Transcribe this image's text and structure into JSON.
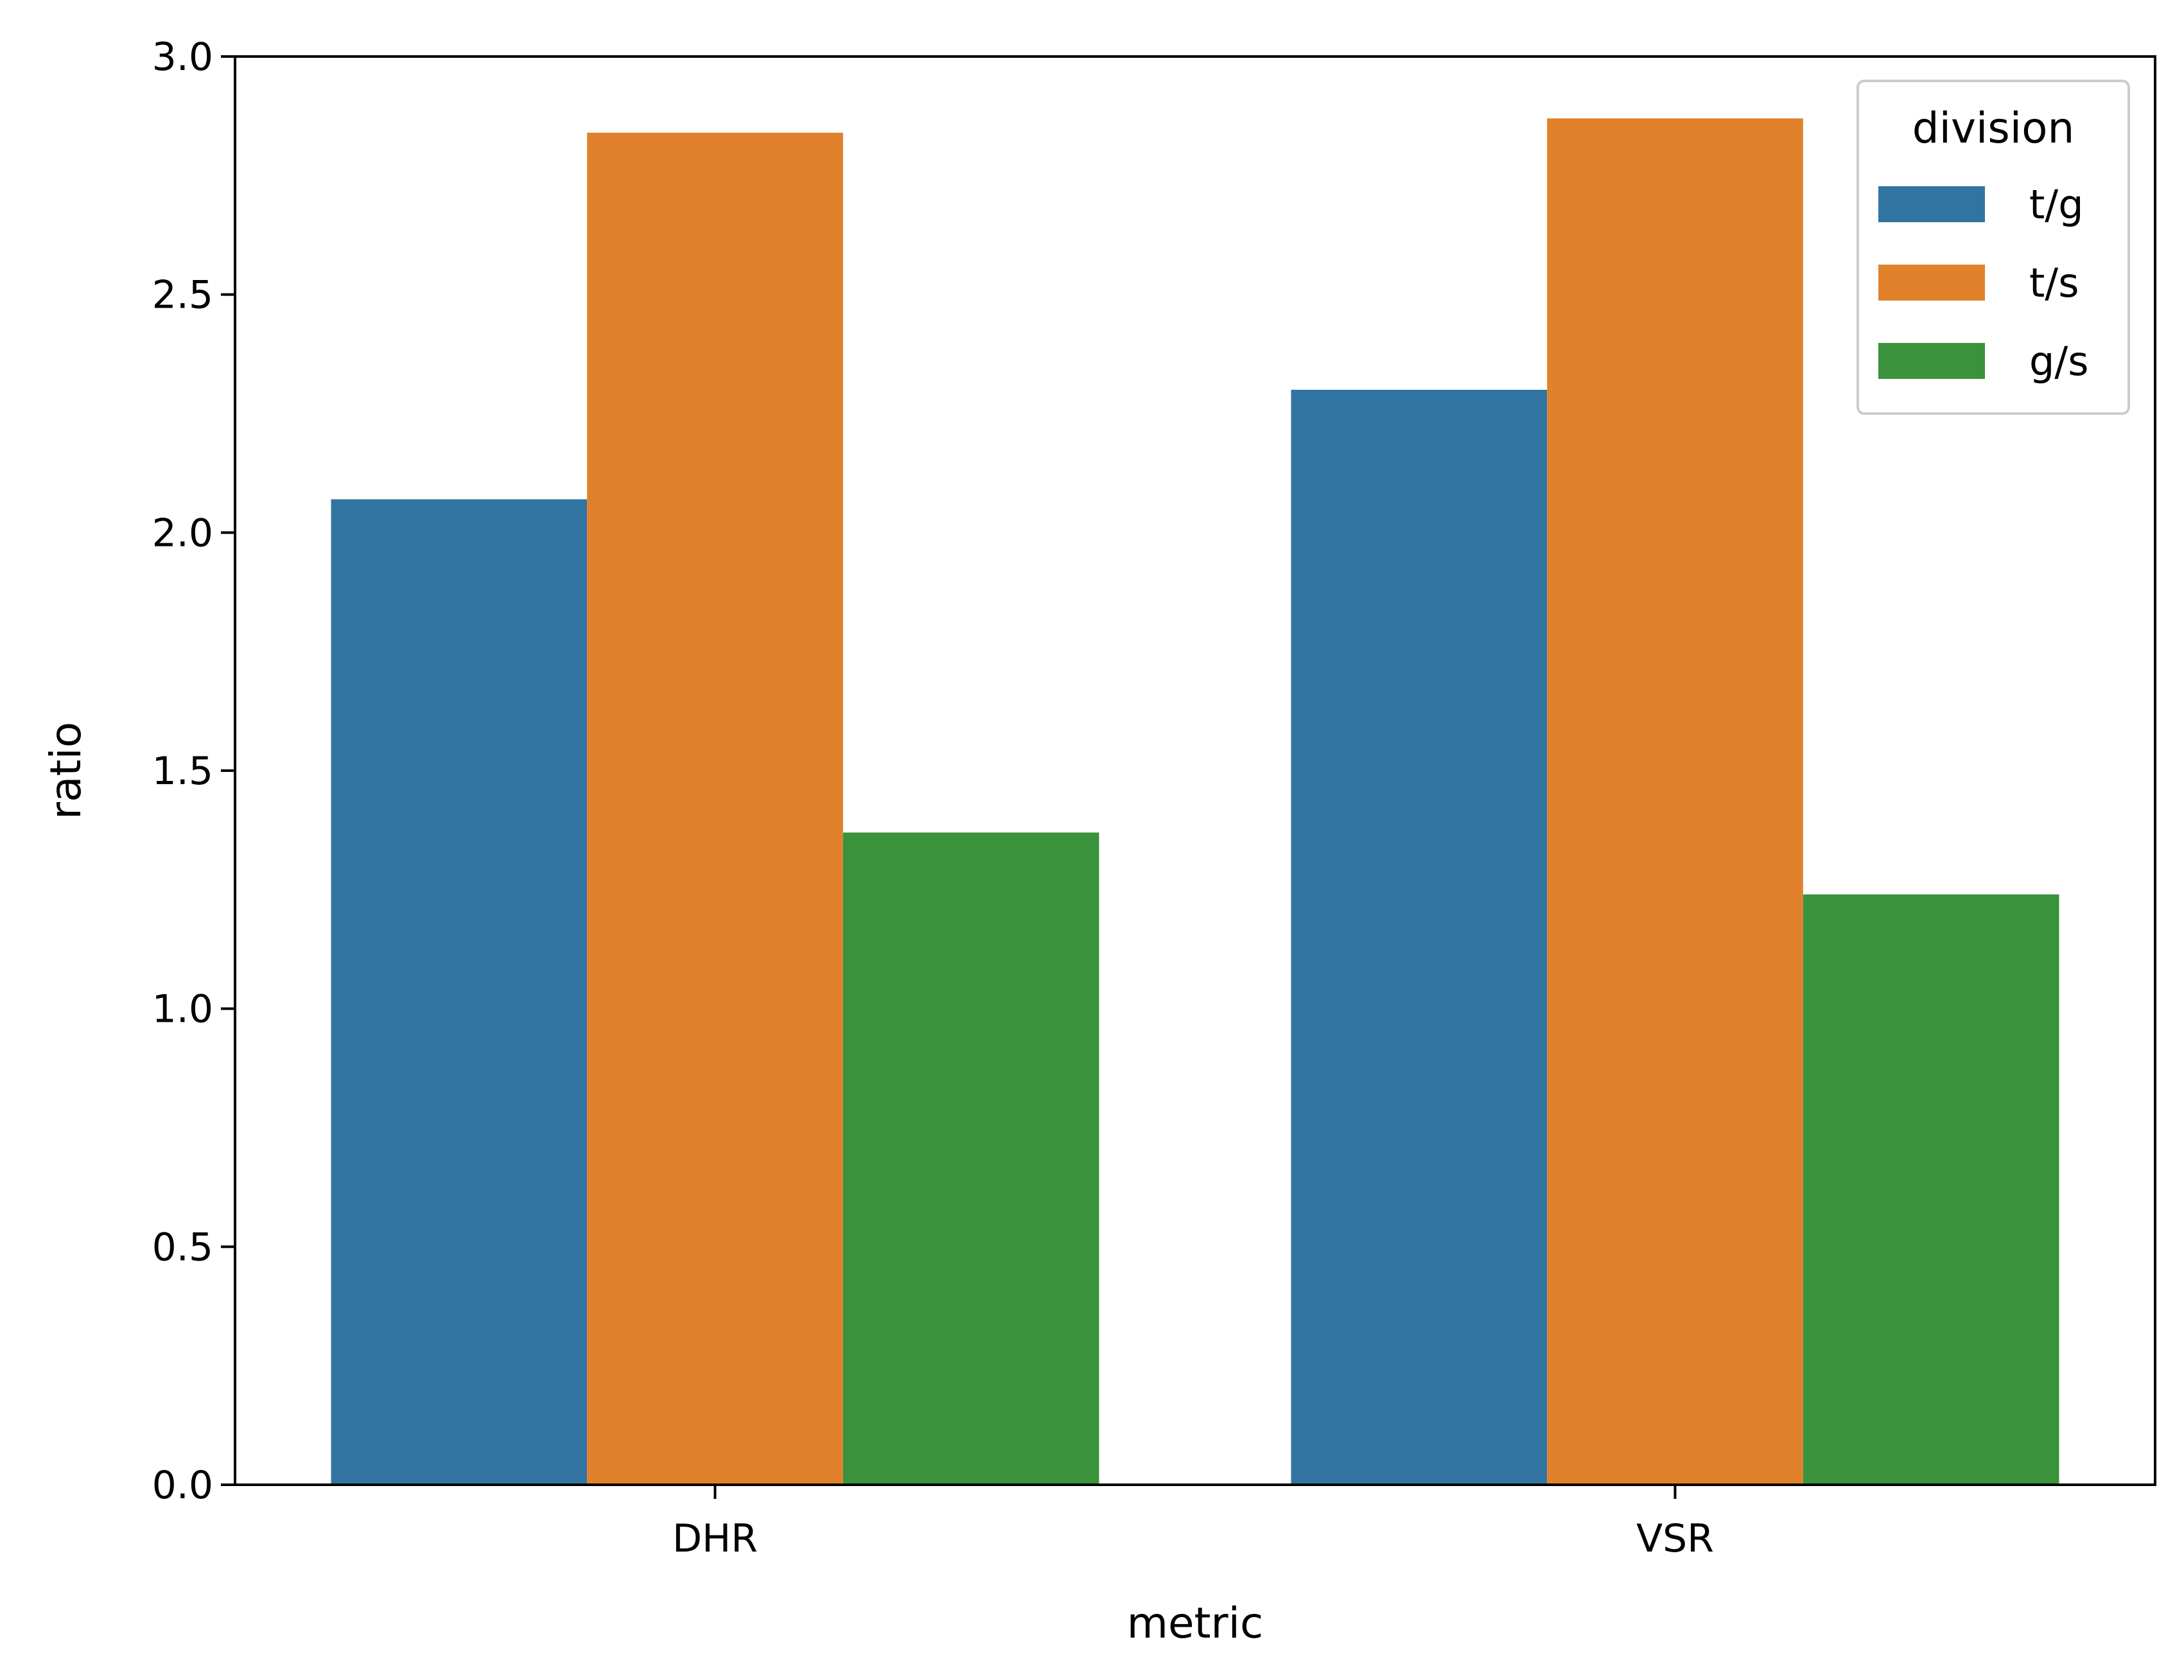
{
  "chart_data": {
    "type": "bar",
    "title": "",
    "xlabel": "metric",
    "ylabel": "ratio",
    "categories": [
      "DHR",
      "VSR"
    ],
    "ylim": [
      0,
      3.0
    ],
    "yticks": [
      "0.0",
      "0.5",
      "1.0",
      "1.5",
      "2.0",
      "2.5",
      "3.0"
    ],
    "grid": false,
    "legend": {
      "title": "division",
      "placement": "top-right"
    },
    "series": [
      {
        "name": "t/g",
        "color": "#3274a1",
        "values": [
          2.07,
          2.3
        ]
      },
      {
        "name": "t/s",
        "color": "#e1812c",
        "values": [
          2.84,
          2.87
        ]
      },
      {
        "name": "g/s",
        "color": "#3a923a",
        "values": [
          1.37,
          1.24
        ]
      }
    ]
  }
}
